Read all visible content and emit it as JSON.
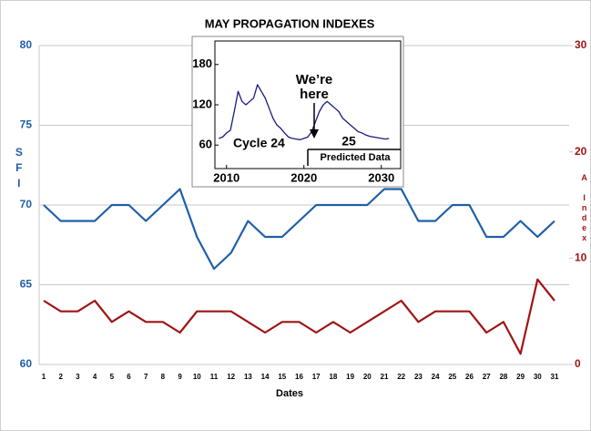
{
  "chart_data": [
    {
      "type": "line",
      "title": "MAY PROPAGATION  INDEXES",
      "x_label": "Dates",
      "y_label": "SFI",
      "y2_label": "A Index",
      "categories": [
        "1",
        "2",
        "3",
        "4",
        "5",
        "6",
        "7",
        "8",
        "9",
        "10",
        "11",
        "12",
        "13",
        "14",
        "15",
        "16",
        "17",
        "18",
        "19",
        "20",
        "21",
        "22",
        "23",
        "24",
        "25",
        "26",
        "27",
        "28",
        "29",
        "30",
        "31"
      ],
      "ylim": [
        60,
        80
      ],
      "yticks": [
        60,
        65,
        70,
        75,
        80
      ],
      "y2lim": [
        0,
        30
      ],
      "y2ticks": [
        0,
        10,
        20,
        30
      ],
      "grid": true,
      "series": [
        {
          "name": "SFI",
          "color": "#1f5fa8",
          "values": [
            70,
            69,
            69,
            69,
            70,
            70,
            69,
            70,
            71,
            68,
            66,
            67,
            69,
            68,
            68,
            69,
            70,
            70,
            70,
            70,
            71,
            71,
            69,
            69,
            70,
            70,
            68,
            68,
            69,
            68,
            69
          ]
        },
        {
          "name": "A Index",
          "color": "#a01414",
          "axis": "y2",
          "values": [
            6,
            5,
            5,
            6,
            4,
            5,
            4,
            4,
            3,
            5,
            5,
            5,
            4,
            3,
            4,
            4,
            3,
            4,
            3,
            4,
            5,
            6,
            4,
            5,
            5,
            5,
            3,
            4,
            1,
            8,
            6
          ]
        }
      ]
    },
    {
      "type": "line",
      "x": [
        2009,
        2009.5,
        2010,
        2010.5,
        2011,
        2011.5,
        2012,
        2012.5,
        2013,
        2013.5,
        2014,
        2014.5,
        2015,
        2015.5,
        2016,
        2016.5,
        2017,
        2017.5,
        2018,
        2018.5,
        2019,
        2019.5,
        2020,
        2020.5,
        2021,
        2021.5,
        2022,
        2022.5,
        2023,
        2023.5,
        2024,
        2024.5,
        2025,
        2025.5,
        2026,
        2026.5,
        2027,
        2027.5,
        2028,
        2028.5,
        2029,
        2029.5,
        2030,
        2030.5,
        2031
      ],
      "xlim": [
        2008.5,
        2032.5
      ],
      "xticks": [
        2010,
        2020,
        2030
      ],
      "ylim": [
        25,
        215
      ],
      "yticks": [
        60,
        120,
        180
      ],
      "annotations": [
        "We’re",
        "here",
        "Cycle 24",
        "25",
        "Predicted Data"
      ],
      "series": [
        {
          "color": "#1a1a80",
          "values": [
            70,
            72,
            78,
            82,
            110,
            140,
            125,
            120,
            125,
            130,
            150,
            140,
            130,
            115,
            100,
            90,
            85,
            78,
            72,
            70,
            69,
            68,
            70,
            72,
            80,
            95,
            110,
            120,
            125,
            120,
            115,
            110,
            100,
            95,
            90,
            85,
            80,
            78,
            75,
            73,
            72,
            71,
            70,
            69,
            70
          ]
        }
      ]
    }
  ]
}
